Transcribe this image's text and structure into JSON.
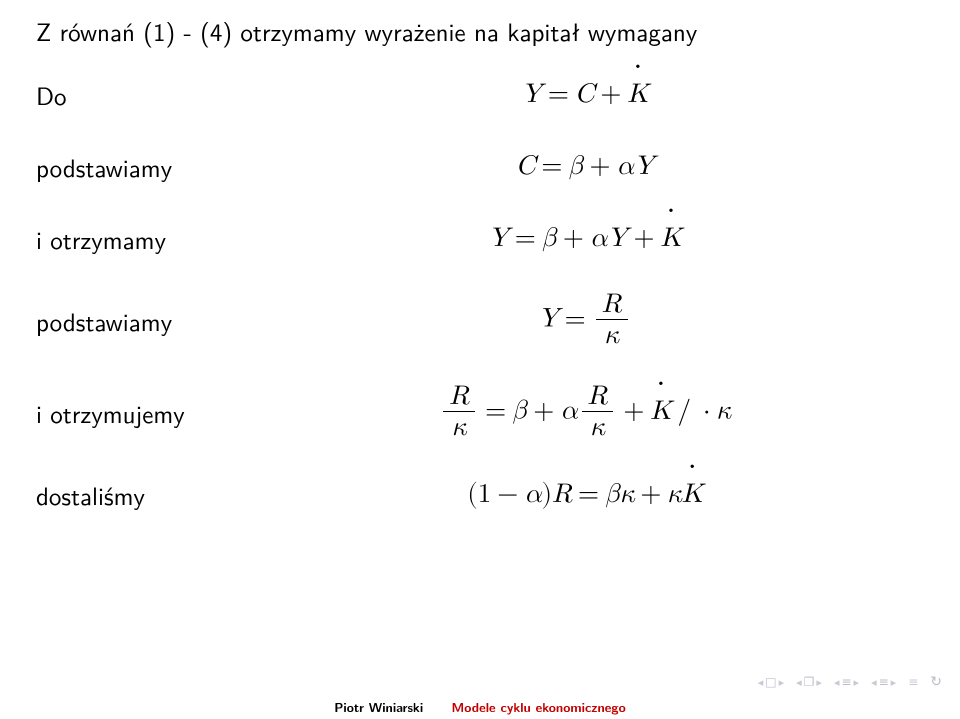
{
  "intro": "Z równań (1) - (4) otrzymamy wyrażenie na kapitał wymagany",
  "steps": {
    "s1_label": "Do",
    "s2_label": "podstawiamy",
    "s3_label": "i otrzymamy",
    "s4_label": "podstawiamy",
    "s5_label": "i otrzymujemy",
    "s6_label": "dostaliśmy"
  },
  "footer": {
    "author": "Piotr Winiarski",
    "title": "Modele cyklu ekonomicznego"
  },
  "colors": {
    "title_color": "#c30000",
    "nav_color": "#c9c9d4",
    "text_color": "#000000",
    "background": "#ffffff"
  },
  "typography": {
    "body_fontsize_pt": 18,
    "math_fontsize_pt": 20,
    "footer_fontsize_pt": 10
  }
}
